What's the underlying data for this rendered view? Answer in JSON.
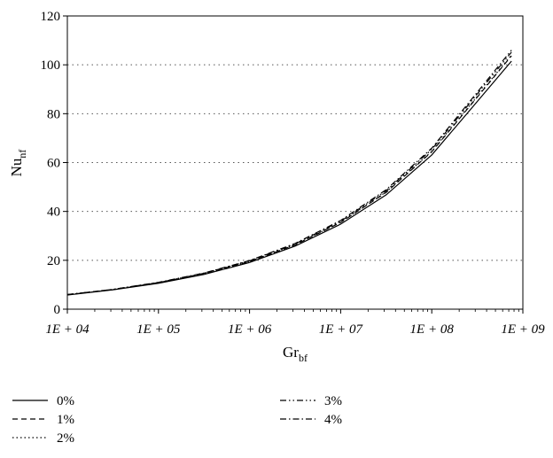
{
  "chart_data": {
    "type": "line",
    "xlabel": "Gr",
    "xlabel_sub": "bf",
    "ylabel": "Nu",
    "ylabel_sub": "nf",
    "x_scale": "log",
    "xlim": [
      10000,
      1000000000
    ],
    "ylim": [
      0,
      120
    ],
    "x_ticks": [
      10000,
      100000,
      1000000,
      10000000,
      100000000,
      1000000000
    ],
    "x_tick_labels": [
      "1E + 04",
      "1E + 05",
      "1E + 06",
      "1E + 07",
      "1E + 08",
      "1E + 09"
    ],
    "y_ticks": [
      0,
      20,
      40,
      60,
      80,
      100,
      120
    ],
    "y_tick_labels": [
      "0",
      "20",
      "40",
      "60",
      "80",
      "100",
      "120"
    ],
    "grid": "horizontal dotted",
    "legend_position": "bottom",
    "x": [
      10000,
      31623,
      100000,
      316228,
      1000000,
      3162278,
      10000000,
      31622777,
      100000000,
      316227766,
      750000000
    ],
    "series": [
      {
        "name": "0%",
        "dash": "solid",
        "values": [
          5.8,
          7.9,
          10.6,
          14.2,
          19.1,
          25.8,
          34.8,
          46.8,
          63.1,
          85.0,
          101.5
        ]
      },
      {
        "name": "1%",
        "dash": "dashed",
        "values": [
          5.9,
          8.0,
          10.8,
          14.5,
          19.5,
          26.3,
          35.5,
          47.8,
          64.4,
          86.8,
          103.7
        ]
      },
      {
        "name": "2%",
        "dash": "dotted",
        "values": [
          5.9,
          8.0,
          10.8,
          14.5,
          19.5,
          26.4,
          35.6,
          48.0,
          64.6,
          87.1,
          104.0
        ]
      },
      {
        "name": "3%",
        "dash": "dashdotdot",
        "values": [
          6.0,
          8.1,
          10.9,
          14.7,
          19.8,
          26.7,
          36.0,
          48.5,
          65.4,
          88.1,
          105.2
        ]
      },
      {
        "name": "4%",
        "dash": "dashdot",
        "values": [
          6.0,
          8.1,
          11.0,
          14.8,
          19.9,
          26.9,
          36.3,
          48.9,
          65.9,
          88.8,
          106.0
        ]
      }
    ]
  }
}
